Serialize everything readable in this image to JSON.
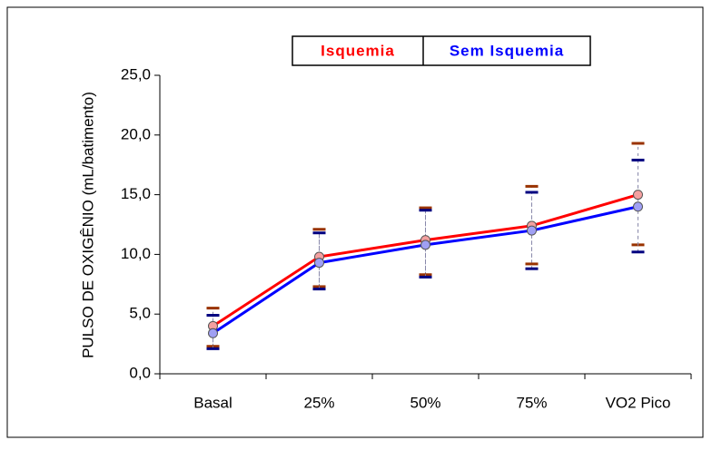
{
  "chart_data": {
    "type": "line",
    "ylabel": "PULSO DE OXIGÊNIO (mL/batimento)",
    "categories": [
      "Basal",
      "25%",
      "50%",
      "75%",
      "VO2 Pico"
    ],
    "series": [
      {
        "name": "Isquemia",
        "color": "#ff0000",
        "marker_color": "#f4a0a0",
        "cap_color": "#993300",
        "values": [
          4.0,
          9.8,
          11.2,
          12.4,
          15.0
        ],
        "lower": [
          2.3,
          7.3,
          8.3,
          9.2,
          10.8
        ],
        "upper": [
          5.5,
          12.1,
          13.9,
          15.7,
          19.3
        ]
      },
      {
        "name": "Sem Isquemia",
        "color": "#0000ff",
        "marker_color": "#a0a0f4",
        "cap_color": "#000080",
        "values": [
          3.4,
          9.3,
          10.8,
          12.0,
          14.0
        ],
        "lower": [
          2.1,
          7.1,
          8.1,
          8.8,
          10.2
        ],
        "upper": [
          4.9,
          11.8,
          13.7,
          15.2,
          17.9
        ]
      }
    ],
    "ylim": [
      0,
      25
    ],
    "yticks": [
      {
        "value": 0,
        "label": "0,0"
      },
      {
        "value": 5,
        "label": "5,0"
      },
      {
        "value": 10,
        "label": "10,0"
      },
      {
        "value": 15,
        "label": "15,0"
      },
      {
        "value": 20,
        "label": "20,0"
      },
      {
        "value": 25,
        "label": "25,0"
      }
    ],
    "grid": false
  }
}
